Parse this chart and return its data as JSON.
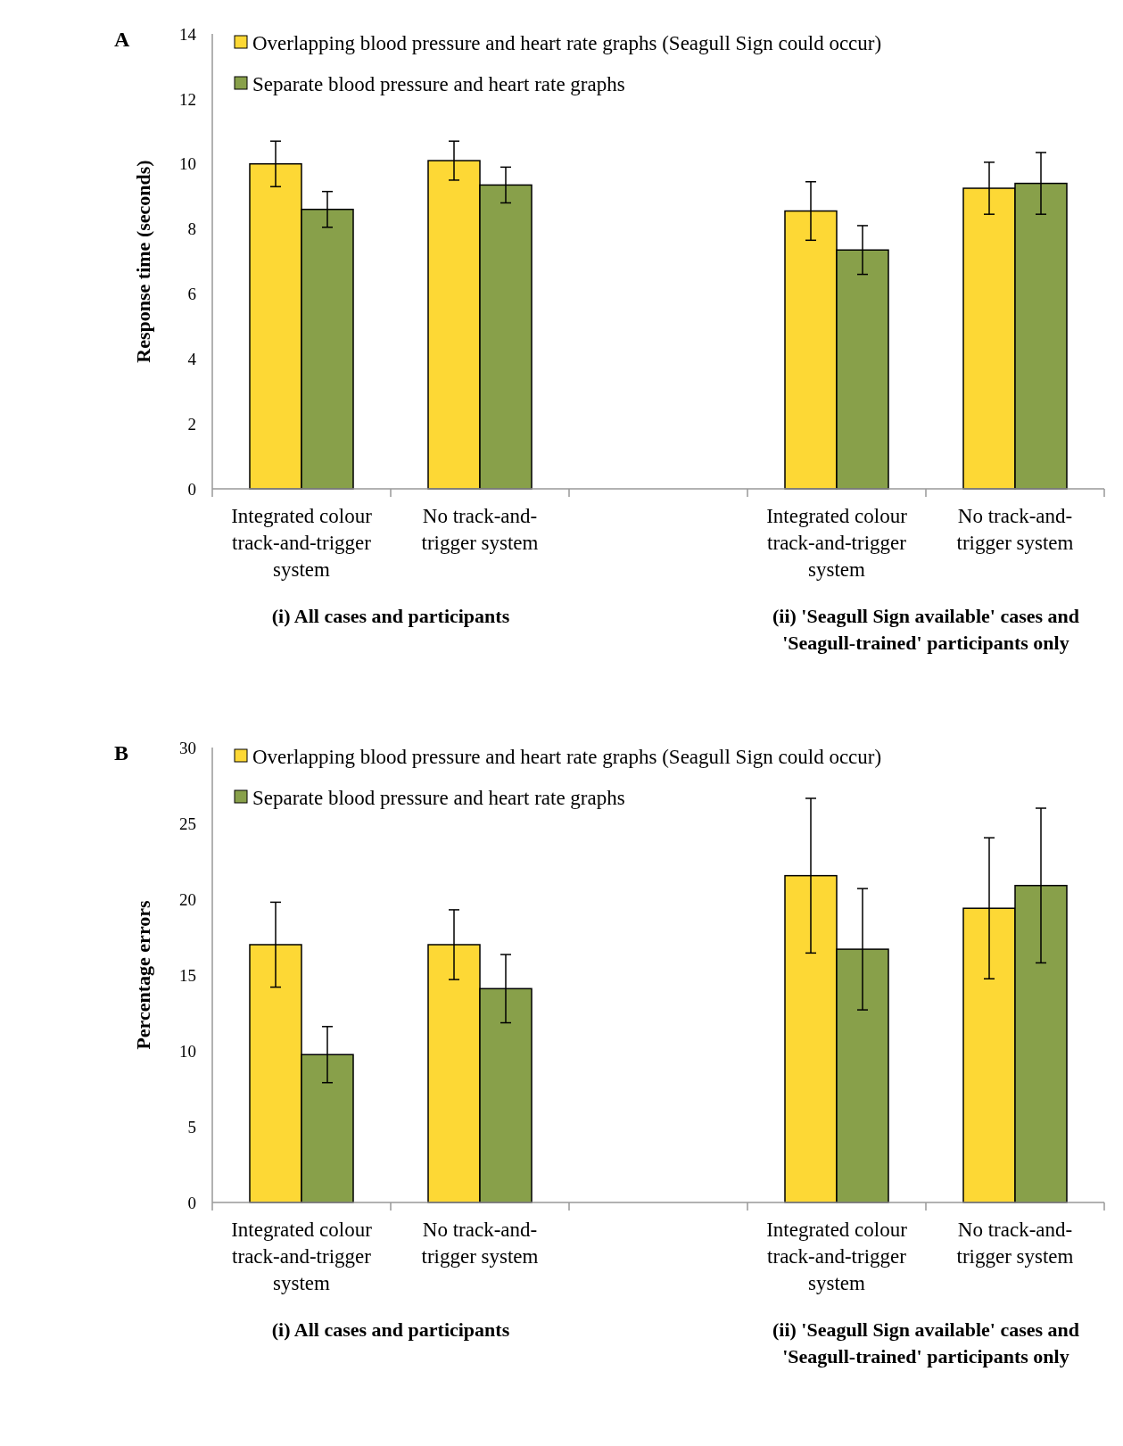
{
  "chart_data": [
    {
      "type": "bar",
      "title": "A",
      "ylabel": "Response time (seconds)",
      "categories": [
        "Integrated colour track-and-trigger system",
        "No track-and-trigger system",
        null,
        "Integrated colour track-and-trigger system",
        "No track-and-trigger system"
      ],
      "series": [
        {
          "name": "Overlapping blood pressure and heart rate graphs (Seagull Sign could occur)",
          "color": "#fdd835",
          "values": [
            10.0,
            10.1,
            null,
            8.55,
            9.25
          ],
          "errors": [
            0.7,
            0.6,
            null,
            0.9,
            0.8
          ]
        },
        {
          "name": "Separate blood pressure and heart rate graphs",
          "color": "#88a04a",
          "values": [
            8.6,
            9.35,
            null,
            7.35,
            9.4
          ],
          "errors": [
            0.55,
            0.55,
            null,
            0.75,
            0.95
          ]
        }
      ],
      "ylim": [
        0,
        14
      ],
      "yticks": [
        0,
        2,
        4,
        6,
        8,
        10,
        12,
        14
      ],
      "grid": false,
      "legend": "top left",
      "annotations": [
        "(i) All cases and participants",
        "(ii) 'Seagull Sign available' cases and 'Seagull-trained' participants only"
      ]
    },
    {
      "type": "bar",
      "title": "B",
      "ylabel": "Percentage errors",
      "categories": [
        "Integrated colour track-and-trigger system",
        "No track-and-trigger system",
        null,
        "Integrated colour track-and-trigger system",
        "No track-and-trigger system"
      ],
      "series": [
        {
          "name": "Overlapping blood pressure and heart rate graphs (Seagull Sign could occur)",
          "color": "#fdd835",
          "values": [
            17.0,
            17.0,
            null,
            21.55,
            19.4
          ],
          "errors": [
            2.8,
            2.3,
            null,
            5.1,
            4.65
          ]
        },
        {
          "name": "Separate blood pressure and heart rate graphs",
          "color": "#88a04a",
          "values": [
            9.75,
            14.1,
            null,
            16.7,
            20.9
          ],
          "errors": [
            1.85,
            2.25,
            null,
            4.0,
            5.1
          ]
        }
      ],
      "ylim": [
        0,
        30
      ],
      "yticks": [
        0,
        5,
        10,
        15,
        20,
        25,
        30
      ],
      "grid": false,
      "legend": "top left",
      "annotations": [
        "(i) All cases and participants",
        "(ii) 'Seagull Sign available' cases and 'Seagull-trained' participants only"
      ]
    }
  ]
}
